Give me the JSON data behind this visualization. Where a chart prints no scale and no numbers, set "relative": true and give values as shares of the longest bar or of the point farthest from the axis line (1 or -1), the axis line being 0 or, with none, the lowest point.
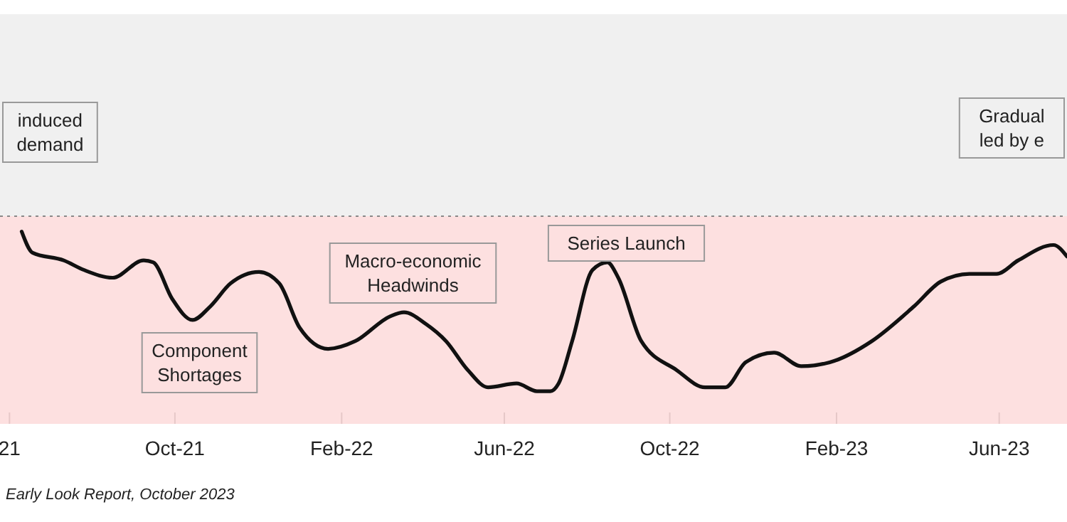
{
  "chart_data": {
    "type": "line",
    "relative": true,
    "x": [
      "2021-06-10",
      "2021-06-18",
      "2021-07-11",
      "2021-07-26",
      "2021-08-16",
      "2021-09-08",
      "2021-09-15",
      "2021-09-29",
      "2021-10-14",
      "2021-10-27",
      "2021-11-11",
      "2021-12-02",
      "2021-12-17",
      "2022-01-01",
      "2022-01-22",
      "2022-02-11",
      "2022-03-09",
      "2022-03-19",
      "2022-04-04",
      "2022-04-19",
      "2022-05-05",
      "2022-05-20",
      "2022-06-10",
      "2022-06-25",
      "2022-07-05",
      "2022-07-11",
      "2022-07-21",
      "2022-08-05",
      "2022-08-16",
      "2022-08-24",
      "2022-09-10",
      "2022-10-06",
      "2022-10-27",
      "2022-11-11",
      "2022-11-26",
      "2022-12-17",
      "2023-01-06",
      "2023-01-27",
      "2023-02-27",
      "2023-03-30",
      "2023-04-19",
      "2023-05-10",
      "2023-05-30",
      "2023-06-15",
      "2023-07-11",
      "2023-07-21"
    ],
    "series": [
      {
        "color": "#111111",
        "values": [
          1.0,
          0.89,
          0.85,
          0.8,
          0.76,
          0.85,
          0.84,
          0.65,
          0.54,
          0.61,
          0.73,
          0.79,
          0.73,
          0.5,
          0.39,
          0.43,
          0.56,
          0.58,
          0.52,
          0.43,
          0.28,
          0.19,
          0.21,
          0.17,
          0.17,
          0.21,
          0.43,
          0.8,
          0.84,
          0.76,
          0.43,
          0.28,
          0.19,
          0.19,
          0.32,
          0.37,
          0.3,
          0.32,
          0.43,
          0.61,
          0.74,
          0.78,
          0.78,
          0.85,
          0.93,
          0.87
        ]
      }
    ],
    "xlim": [
      "2021-05-25",
      "2023-07-21"
    ],
    "xticks": [
      {
        "value": "2021-06-01",
        "label": "21"
      },
      {
        "value": "2021-10-01",
        "label": "Oct-21"
      },
      {
        "value": "2022-02-01",
        "label": "Feb-22"
      },
      {
        "value": "2022-06-01",
        "label": "Jun-22"
      },
      {
        "value": "2022-10-01",
        "label": "Oct-22"
      },
      {
        "value": "2023-02-01",
        "label": "Feb-23"
      },
      {
        "value": "2023-06-01",
        "label": "Jun-23"
      }
    ],
    "bands": [
      {
        "axis": "y",
        "from": 0,
        "to": 1.08,
        "color": "#fde0e0"
      },
      {
        "axis": "y",
        "from": 1.08,
        "to": 2.13,
        "color": "#f0f0f0"
      }
    ],
    "ref_lines": [
      {
        "axis": "y",
        "value": 1.08,
        "color": "#888888",
        "line_style": "dotted"
      }
    ],
    "grid": false,
    "marker": "none",
    "line_style": "solid",
    "annotations": [
      "induced\ndemand",
      "Component\nShortages",
      "Macro-economic\nHeadwinds",
      "Series Launch",
      "Gradual\nled by e",
      "Early Look Report, October 2023"
    ]
  }
}
